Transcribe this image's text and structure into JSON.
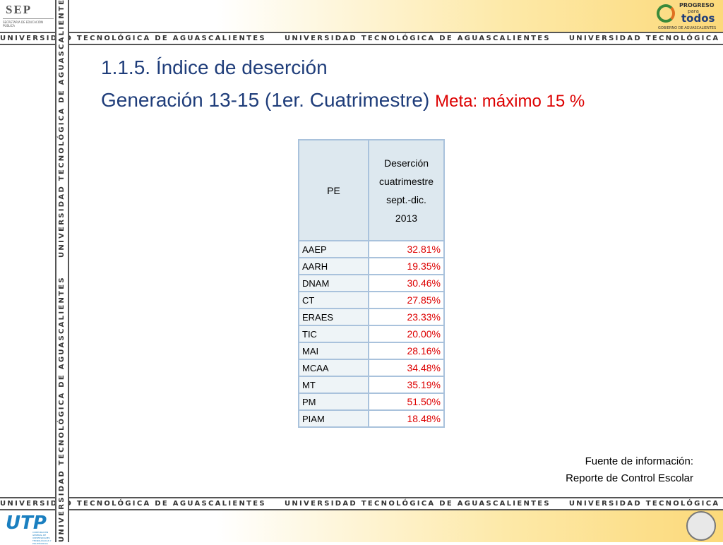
{
  "header": {
    "sep": "SEP",
    "sep_sub": "SECRETARÍA DE EDUCACIÓN PÚBLICA",
    "progreso": "PROGRESO",
    "para": "para",
    "todos": "todos",
    "gobierno": "GOBIERNO DE AGUASCALIENTES"
  },
  "banner": "UNIVERSIDAD TECNOLÓGICA DE AGUASCALIENTES",
  "title": "1.1.5.  Índice de deserción",
  "subtitle": "Generación 13-15 (1er. Cuatrimestre)",
  "goal": "Meta: máximo 15 %",
  "table": {
    "header": [
      "PE",
      [
        "Deserción",
        "cuatrimestre",
        "sept.-dic.",
        "2013"
      ]
    ],
    "rows": [
      [
        "AAEP",
        "32.81%"
      ],
      [
        "AARH",
        "19.35%"
      ],
      [
        "DNAM",
        "30.46%"
      ],
      [
        "CT",
        "27.85%"
      ],
      [
        "ERAES",
        "23.33%"
      ],
      [
        "TIC",
        "20.00%"
      ],
      [
        "MAI",
        "28.16%"
      ],
      [
        "MCAA",
        "34.48%"
      ],
      [
        "MT",
        "35.19%"
      ],
      [
        "PM",
        "51.50%"
      ],
      [
        "PIAM",
        "18.48%"
      ]
    ]
  },
  "source": [
    "Fuente de información:",
    "Reporte de Control Escolar"
  ],
  "footer": {
    "utp": "UTP",
    "utp_sub": "CORPORACIÓN GENERAL DE UNIVERSIDADES TECNOLÓGICAS Y POLITÉCNICAS"
  }
}
